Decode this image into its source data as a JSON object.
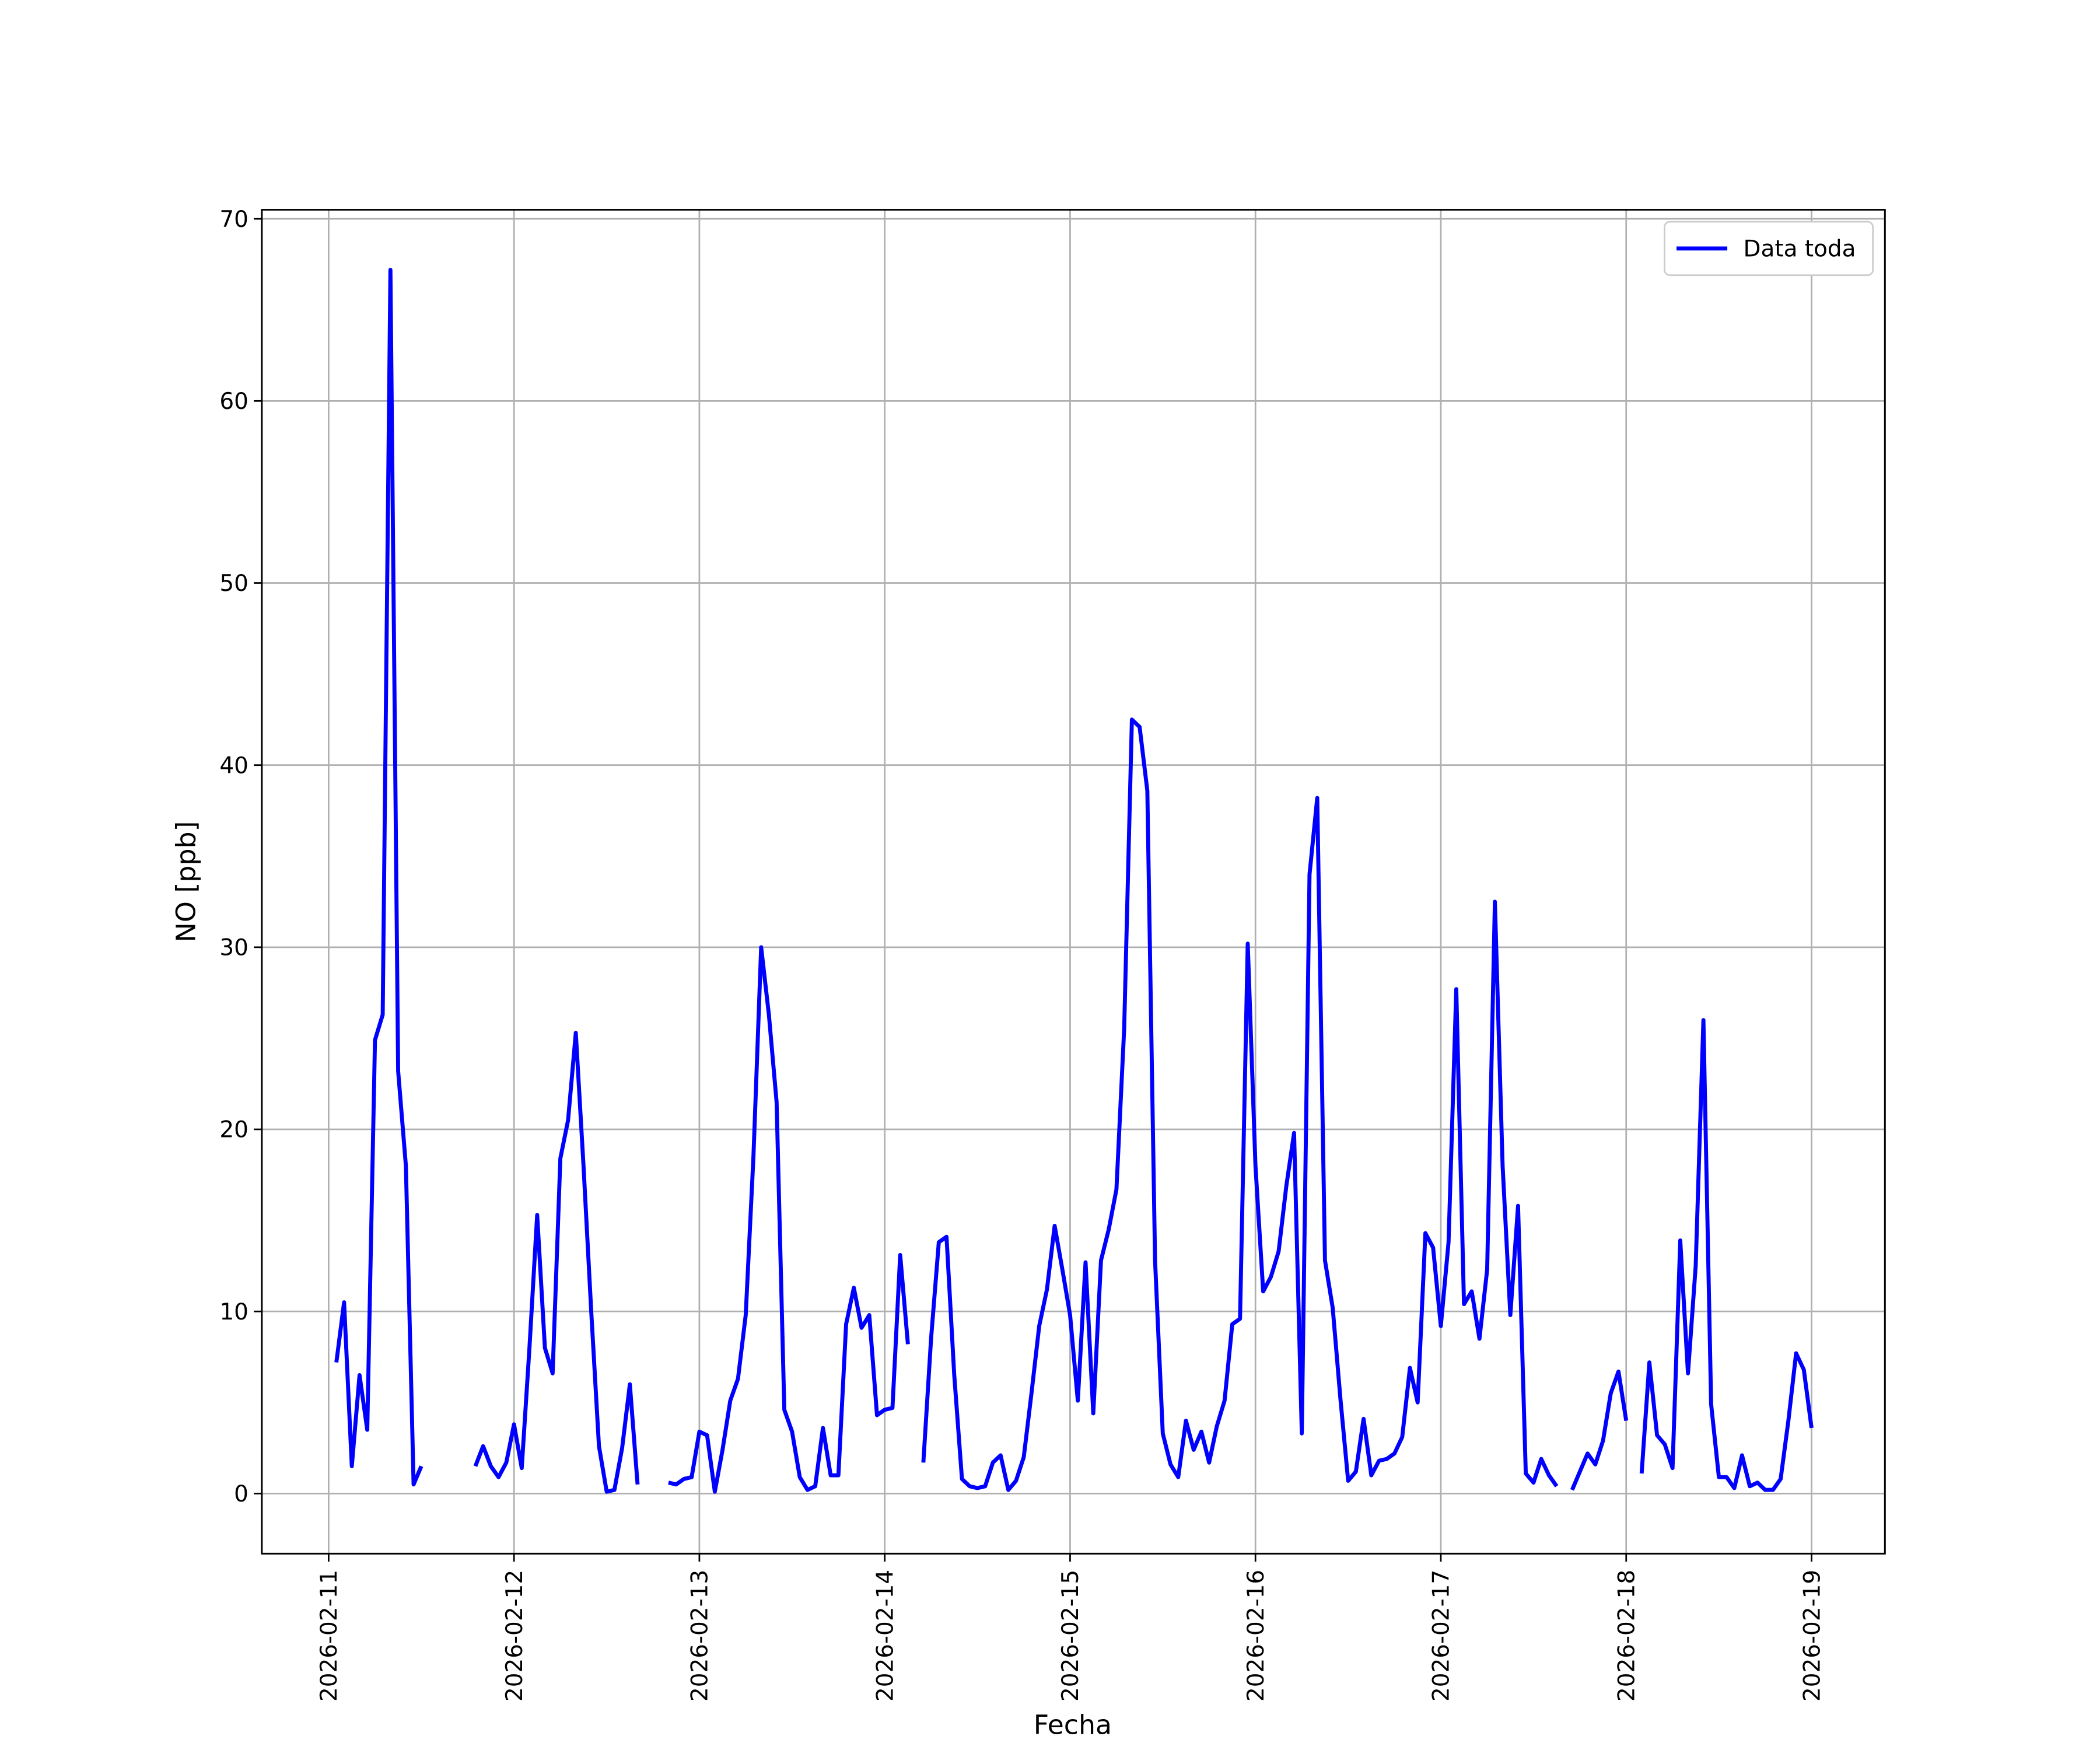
{
  "chart_data": {
    "type": "line",
    "xlabel": "Fecha",
    "ylabel": "NO [ppb]",
    "x": [
      "2026-02-11T01:00",
      "2026-02-11T02:00",
      "2026-02-11T03:00",
      "2026-02-11T04:00",
      "2026-02-11T05:00",
      "2026-02-11T06:00",
      "2026-02-11T07:00",
      "2026-02-11T08:00",
      "2026-02-11T09:00",
      "2026-02-11T10:00",
      "2026-02-11T11:00",
      "2026-02-11T12:00",
      "2026-02-11T13:00",
      "2026-02-11T14:00",
      "2026-02-11T15:00",
      "2026-02-11T16:00",
      "2026-02-11T17:00",
      "2026-02-11T18:00",
      "2026-02-11T19:00",
      "2026-02-11T20:00",
      "2026-02-11T21:00",
      "2026-02-11T22:00",
      "2026-02-11T23:00",
      "2026-02-12T00:00",
      "2026-02-12T01:00",
      "2026-02-12T02:00",
      "2026-02-12T03:00",
      "2026-02-12T04:00",
      "2026-02-12T05:00",
      "2026-02-12T06:00",
      "2026-02-12T07:00",
      "2026-02-12T08:00",
      "2026-02-12T09:00",
      "2026-02-12T10:00",
      "2026-02-12T11:00",
      "2026-02-12T12:00",
      "2026-02-12T13:00",
      "2026-02-12T14:00",
      "2026-02-12T15:00",
      "2026-02-12T16:00",
      "2026-02-12T17:00",
      "2026-02-12T18:00",
      "2026-02-12T19:00",
      "2026-02-12T20:00",
      "2026-02-12T21:00",
      "2026-02-12T22:00",
      "2026-02-12T23:00",
      "2026-02-13T00:00",
      "2026-02-13T01:00",
      "2026-02-13T02:00",
      "2026-02-13T03:00",
      "2026-02-13T04:00",
      "2026-02-13T05:00",
      "2026-02-13T06:00",
      "2026-02-13T07:00",
      "2026-02-13T08:00",
      "2026-02-13T09:00",
      "2026-02-13T10:00",
      "2026-02-13T11:00",
      "2026-02-13T12:00",
      "2026-02-13T13:00",
      "2026-02-13T14:00",
      "2026-02-13T15:00",
      "2026-02-13T16:00",
      "2026-02-13T17:00",
      "2026-02-13T18:00",
      "2026-02-13T19:00",
      "2026-02-13T20:00",
      "2026-02-13T21:00",
      "2026-02-13T22:00",
      "2026-02-13T23:00",
      "2026-02-14T00:00",
      "2026-02-14T01:00",
      "2026-02-14T02:00",
      "2026-02-14T03:00",
      "2026-02-14T04:00",
      "2026-02-14T05:00",
      "2026-02-14T06:00",
      "2026-02-14T07:00",
      "2026-02-14T08:00",
      "2026-02-14T09:00",
      "2026-02-14T10:00",
      "2026-02-14T11:00",
      "2026-02-14T12:00",
      "2026-02-14T13:00",
      "2026-02-14T14:00",
      "2026-02-14T15:00",
      "2026-02-14T16:00",
      "2026-02-14T17:00",
      "2026-02-14T18:00",
      "2026-02-14T19:00",
      "2026-02-14T20:00",
      "2026-02-14T21:00",
      "2026-02-14T22:00",
      "2026-02-14T23:00",
      "2026-02-15T00:00",
      "2026-02-15T01:00",
      "2026-02-15T02:00",
      "2026-02-15T03:00",
      "2026-02-15T04:00",
      "2026-02-15T05:00",
      "2026-02-15T06:00",
      "2026-02-15T07:00",
      "2026-02-15T08:00",
      "2026-02-15T09:00",
      "2026-02-15T10:00",
      "2026-02-15T11:00",
      "2026-02-15T12:00",
      "2026-02-15T13:00",
      "2026-02-15T14:00",
      "2026-02-15T15:00",
      "2026-02-15T16:00",
      "2026-02-15T17:00",
      "2026-02-15T18:00",
      "2026-02-15T19:00",
      "2026-02-15T20:00",
      "2026-02-15T21:00",
      "2026-02-15T22:00",
      "2026-02-15T23:00",
      "2026-02-16T00:00",
      "2026-02-16T01:00",
      "2026-02-16T02:00",
      "2026-02-16T03:00",
      "2026-02-16T04:00",
      "2026-02-16T05:00",
      "2026-02-16T06:00",
      "2026-02-16T07:00",
      "2026-02-16T08:00",
      "2026-02-16T09:00",
      "2026-02-16T10:00",
      "2026-02-16T11:00",
      "2026-02-16T12:00",
      "2026-02-16T13:00",
      "2026-02-16T14:00",
      "2026-02-16T15:00",
      "2026-02-16T16:00",
      "2026-02-16T17:00",
      "2026-02-16T18:00",
      "2026-02-16T19:00",
      "2026-02-16T20:00",
      "2026-02-16T21:00",
      "2026-02-16T22:00",
      "2026-02-16T23:00",
      "2026-02-17T00:00",
      "2026-02-17T01:00",
      "2026-02-17T02:00",
      "2026-02-17T03:00",
      "2026-02-17T04:00",
      "2026-02-17T05:00",
      "2026-02-17T06:00",
      "2026-02-17T07:00",
      "2026-02-17T08:00",
      "2026-02-17T09:00",
      "2026-02-17T10:00",
      "2026-02-17T11:00",
      "2026-02-17T12:00",
      "2026-02-17T13:00",
      "2026-02-17T14:00",
      "2026-02-17T15:00",
      "2026-02-17T16:00",
      "2026-02-17T17:00",
      "2026-02-17T18:00",
      "2026-02-17T19:00",
      "2026-02-17T20:00",
      "2026-02-17T21:00",
      "2026-02-17T22:00",
      "2026-02-17T23:00",
      "2026-02-18T00:00",
      "2026-02-18T01:00",
      "2026-02-18T02:00",
      "2026-02-18T03:00",
      "2026-02-18T04:00",
      "2026-02-18T05:00",
      "2026-02-18T06:00",
      "2026-02-18T07:00",
      "2026-02-18T08:00",
      "2026-02-18T09:00",
      "2026-02-18T10:00",
      "2026-02-18T11:00",
      "2026-02-18T12:00",
      "2026-02-18T13:00",
      "2026-02-18T14:00",
      "2026-02-18T15:00",
      "2026-02-18T16:00",
      "2026-02-18T17:00",
      "2026-02-18T18:00",
      "2026-02-18T19:00",
      "2026-02-18T20:00",
      "2026-02-18T21:00",
      "2026-02-18T22:00",
      "2026-02-18T23:00",
      "2026-02-19T00:00"
    ],
    "series": [
      {
        "name": "Data toda",
        "color": "#0000ff",
        "values": [
          7.2,
          10.5,
          1.5,
          6.5,
          3.5,
          24.9,
          26.3,
          67.2,
          23.2,
          18,
          0.5,
          1.5,
          null,
          null,
          null,
          null,
          null,
          null,
          1.5,
          2.6,
          1.5,
          0.9,
          1.7,
          3.8,
          1.4,
          8,
          15.3,
          8,
          6.6,
          18.4,
          20.5,
          25.3,
          18,
          10,
          2.6,
          0.1,
          0.2,
          2.5,
          6,
          0.5,
          null,
          null,
          null,
          0.6,
          0.5,
          0.8,
          0.9,
          3.4,
          3.2,
          0.1,
          2.4,
          5.1,
          6.3,
          9.8,
          18.5,
          30,
          26.3,
          21.5,
          4.6,
          3.4,
          0.9,
          0.2,
          0.4,
          3.6,
          1,
          1,
          9.3,
          11.3,
          9.1,
          9.8,
          4.3,
          4.6,
          4.7,
          13.1,
          8.2,
          null,
          1.7,
          8.5,
          13.8,
          14.1,
          6.5,
          0.8,
          0.4,
          0.3,
          0.4,
          1.7,
          2.1,
          0.2,
          0.7,
          2,
          5.5,
          9.2,
          11.2,
          14.7,
          12.3,
          9.8,
          5.1,
          12.7,
          4.4,
          12.8,
          14.5,
          16.7,
          25.5,
          42.5,
          42.1,
          38.6,
          12.8,
          3.3,
          1.6,
          0.9,
          4,
          2.4,
          3.4,
          1.7,
          3.7,
          5.1,
          9.3,
          9.6,
          30.2,
          18,
          11.1,
          11.9,
          13.3,
          16.9,
          19.8,
          3.3,
          34,
          38.2,
          12.8,
          10.2,
          5.2,
          0.7,
          1.2,
          4.1,
          1,
          1.8,
          1.9,
          2.2,
          3.1,
          6.9,
          5,
          14.3,
          13.5,
          9.2,
          13.8,
          27.7,
          10.4,
          11.1,
          8.5,
          12.3,
          32.5,
          18,
          9.8,
          15.8,
          1.1,
          0.6,
          1.9,
          1,
          0.4,
          null,
          0.2,
          1.2,
          2.2,
          1.6,
          2.9,
          5.5,
          6.7,
          4,
          null,
          1.1,
          7.2,
          3.2,
          2.7,
          1.4,
          13.9,
          6.6,
          12.5,
          26,
          4.9,
          0.9,
          0.9,
          0.3,
          2.1,
          0.4,
          0.6,
          0.2,
          0.2,
          0.8,
          4,
          7.7,
          6.8,
          3.6
        ]
      }
    ],
    "xlim": [
      "2026-02-10T15:21",
      "2026-02-19T09:30"
    ],
    "xticks": [
      "2026-02-11",
      "2026-02-12",
      "2026-02-13",
      "2026-02-14",
      "2026-02-15",
      "2026-02-16",
      "2026-02-17",
      "2026-02-18",
      "2026-02-19"
    ],
    "ylim": [
      -3.3,
      70.5
    ],
    "yticks": [
      0,
      10,
      20,
      30,
      40,
      50,
      60,
      70
    ],
    "grid": true,
    "legend": "upper right"
  }
}
